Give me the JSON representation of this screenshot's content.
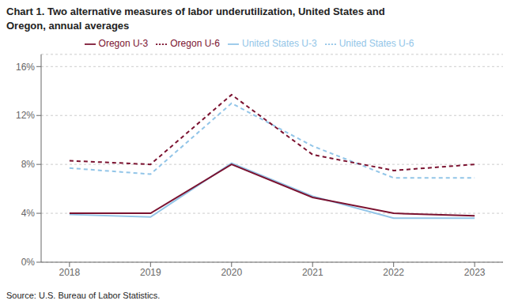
{
  "chart_data": {
    "type": "line",
    "title": "Chart 1. Two alternative measures of labor underutilization, United States and\nOregon, annual averages",
    "annotations": [
      "Source: U.S. Bureau of Labor Statistics."
    ],
    "x": [
      2018,
      2019,
      2020,
      2021,
      2022,
      2023
    ],
    "xlim": [
      2017.65,
      2023.35
    ],
    "xticks": [
      2018,
      2019,
      2020,
      2021,
      2022,
      2023
    ],
    "ylim": [
      0,
      17
    ],
    "yticks": [
      {
        "value": 0,
        "label": "0%"
      },
      {
        "value": 4,
        "label": "4%"
      },
      {
        "value": 8,
        "label": "8%"
      },
      {
        "value": 12,
        "label": "12%"
      },
      {
        "value": 16,
        "label": "16%"
      }
    ],
    "grid": true,
    "legend": "top",
    "series": [
      {
        "name": "United States U-3",
        "color": "#92C5E8",
        "line_style": "solid",
        "values": [
          3.9,
          3.7,
          8.1,
          5.4,
          3.6,
          3.6
        ]
      },
      {
        "name": "United States U-6",
        "color": "#92C5E8",
        "line_style": "dashed",
        "values": [
          7.7,
          7.2,
          13.0,
          9.5,
          6.9,
          6.9
        ]
      },
      {
        "name": "Oregon U-3",
        "color": "#7B1230",
        "line_style": "solid",
        "values": [
          4.0,
          4.0,
          8.0,
          5.3,
          4.0,
          3.8
        ]
      },
      {
        "name": "Oregon U-6",
        "color": "#7B1230",
        "line_style": "dashed",
        "values": [
          8.3,
          8.0,
          13.7,
          8.8,
          7.5,
          8.0
        ]
      }
    ]
  }
}
